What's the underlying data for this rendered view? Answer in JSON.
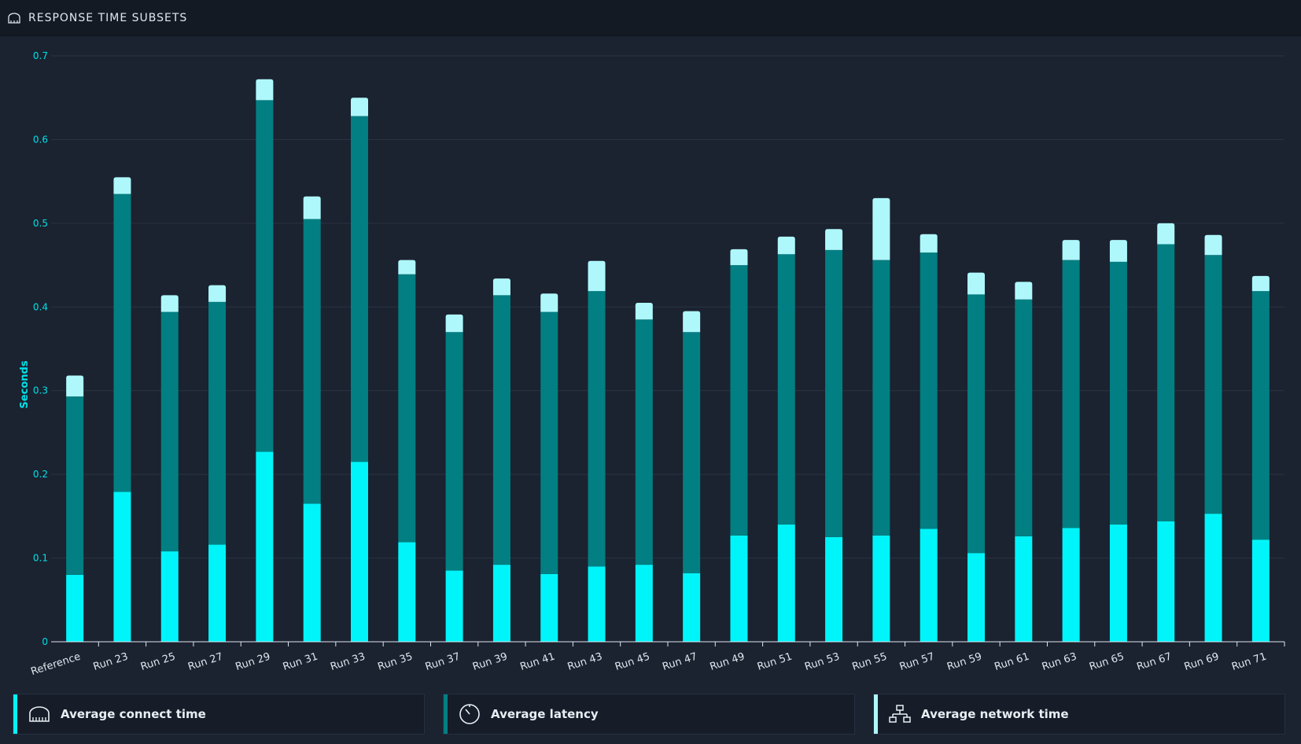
{
  "header": {
    "title": "RESPONSE TIME SUBSETS",
    "icon": "connect-icon"
  },
  "colors": {
    "connect": "#00f5fa",
    "latency": "#027f82",
    "network": "#aef8fb",
    "axis_text": "#00e1e6",
    "tick_text": "#dfe7ee"
  },
  "legend": [
    {
      "label": "Average connect time",
      "icon": "connect-icon",
      "color": "#00f5fa"
    },
    {
      "label": "Average latency",
      "icon": "latency-icon",
      "color": "#027f82"
    },
    {
      "label": "Average network time",
      "icon": "network-icon",
      "color": "#aef8fb"
    }
  ],
  "chart_data": {
    "type": "bar",
    "stacked": true,
    "ylabel": "Seconds",
    "ylim": [
      0,
      0.7
    ],
    "yticks": [
      "0",
      "0.1",
      "0.2",
      "0.3",
      "0.4",
      "0.5",
      "0.6",
      "0.7"
    ],
    "grid": true,
    "legend_position": "bottom",
    "categories": [
      "Reference",
      "Run 23",
      "Run 25",
      "Run 27",
      "Run 29",
      "Run 31",
      "Run 33",
      "Run 35",
      "Run 37",
      "Run 39",
      "Run 41",
      "Run 43",
      "Run 45",
      "Run 47",
      "Run 49",
      "Run 51",
      "Run 53",
      "Run 55",
      "Run 57",
      "Run 59",
      "Run 61",
      "Run 63",
      "Run 65",
      "Run 67",
      "Run 69",
      "Run 71"
    ],
    "series": [
      {
        "name": "Average connect time",
        "values": [
          0.08,
          0.179,
          0.108,
          0.116,
          0.227,
          0.165,
          0.215,
          0.119,
          0.085,
          0.092,
          0.081,
          0.09,
          0.092,
          0.082,
          0.127,
          0.14,
          0.125,
          0.127,
          0.135,
          0.106,
          0.126,
          0.136,
          0.14,
          0.144,
          0.153,
          0.122
        ]
      },
      {
        "name": "Average latency",
        "values": [
          0.213,
          0.356,
          0.286,
          0.29,
          0.42,
          0.34,
          0.413,
          0.32,
          0.285,
          0.322,
          0.313,
          0.329,
          0.293,
          0.288,
          0.323,
          0.323,
          0.343,
          0.329,
          0.33,
          0.309,
          0.283,
          0.32,
          0.314,
          0.331,
          0.309,
          0.297
        ]
      },
      {
        "name": "Average network time",
        "values": [
          0.025,
          0.02,
          0.02,
          0.02,
          0.025,
          0.027,
          0.022,
          0.017,
          0.021,
          0.02,
          0.022,
          0.036,
          0.02,
          0.025,
          0.019,
          0.021,
          0.025,
          0.074,
          0.022,
          0.026,
          0.021,
          0.024,
          0.026,
          0.025,
          0.024,
          0.018
        ]
      }
    ]
  }
}
